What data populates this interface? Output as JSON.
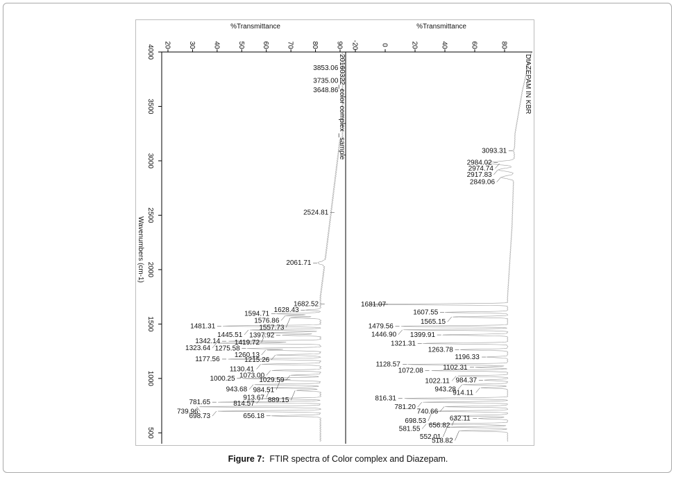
{
  "caption": {
    "label": "Figure 7:",
    "text": "FTIR spectra of Color complex and Diazepam."
  },
  "colors": {
    "spectrum": "#9a9a9a",
    "axis": "#000000",
    "frame": "#a9a9a9"
  },
  "chart_data": [
    {
      "type": "line",
      "title": "20160322_color complex _sample",
      "xlabel": "Wavenumbers (cm-1)",
      "ylabel": "%Transmittance",
      "xlim": [
        4000,
        400
      ],
      "ylim": [
        15,
        95
      ],
      "x_ticks": [
        4000,
        3500,
        3000,
        2500,
        2000,
        1500,
        1000,
        500
      ],
      "y_ticks": [
        20,
        30,
        40,
        50,
        60,
        70,
        80,
        90
      ],
      "peaks": [
        {
          "x": 3853.06,
          "y": 92,
          "label": "3853.06"
        },
        {
          "x": 3735.0,
          "y": 92,
          "label": "3735.00"
        },
        {
          "x": 3648.86,
          "y": 92,
          "label": "3648.86"
        },
        {
          "x": 2524.81,
          "y": 88,
          "label": "2524.81"
        },
        {
          "x": 2061.71,
          "y": 81,
          "label": "2061.71"
        },
        {
          "x": 1682.52,
          "y": 84,
          "label": "1682.52"
        },
        {
          "x": 1628.43,
          "y": 76,
          "label": "1628.43"
        },
        {
          "x": 1594.71,
          "y": 64,
          "label": "1594.71"
        },
        {
          "x": 1576.86,
          "y": 68,
          "label": "1576.86"
        },
        {
          "x": 1557.73,
          "y": 70,
          "label": "1557.73"
        },
        {
          "x": 1481.31,
          "y": 42,
          "label": "1481.31"
        },
        {
          "x": 1445.51,
          "y": 53,
          "label": "1445.51"
        },
        {
          "x": 1419.72,
          "y": 60,
          "label": "1419.72"
        },
        {
          "x": 1397.92,
          "y": 66,
          "label": "1397.92"
        },
        {
          "x": 1342.14,
          "y": 44,
          "label": "1342.14"
        },
        {
          "x": 1323.64,
          "y": 40,
          "label": "1323.64"
        },
        {
          "x": 1275.58,
          "y": 52,
          "label": "1275.58"
        },
        {
          "x": 1260.13,
          "y": 60,
          "label": "1260.13"
        },
        {
          "x": 1215.26,
          "y": 64,
          "label": "1215.26"
        },
        {
          "x": 1177.56,
          "y": 44,
          "label": "1177.56"
        },
        {
          "x": 1130.41,
          "y": 58,
          "label": "1130.41"
        },
        {
          "x": 1073.0,
          "y": 62,
          "label": "1073.00"
        },
        {
          "x": 1029.59,
          "y": 70,
          "label": "1029.59"
        },
        {
          "x": 1000.25,
          "y": 50,
          "label": "1000.25"
        },
        {
          "x": 984.51,
          "y": 66,
          "label": "984.51"
        },
        {
          "x": 943.68,
          "y": 55,
          "label": "943.68"
        },
        {
          "x": 913.67,
          "y": 62,
          "label": "913.67"
        },
        {
          "x": 889.15,
          "y": 72,
          "label": "889.15"
        },
        {
          "x": 814.57,
          "y": 58,
          "label": "814.57"
        },
        {
          "x": 781.65,
          "y": 40,
          "label": "781.65"
        },
        {
          "x": 739.96,
          "y": 32,
          "label": "739.96"
        },
        {
          "x": 698.73,
          "y": 40,
          "label": "698.73"
        },
        {
          "x": 656.18,
          "y": 62,
          "label": "656.18"
        }
      ]
    },
    {
      "type": "line",
      "title": "DIAZEPAM IN KBR",
      "xlabel": "Wavenumbers (cm-1)",
      "ylabel": "%Transmittance",
      "xlim": [
        4000,
        400
      ],
      "ylim": [
        -25,
        100
      ],
      "x_ticks": [
        4000,
        3500,
        3000,
        2500,
        2000,
        1500,
        1000,
        500
      ],
      "y_ticks": [
        -20,
        0,
        20,
        40,
        60,
        80
      ],
      "peaks": [
        {
          "x": 3093.31,
          "y": 86,
          "label": "3093.31"
        },
        {
          "x": 2984.02,
          "y": 76,
          "label": "2984.02"
        },
        {
          "x": 2974.74,
          "y": 77,
          "label": "2974.74"
        },
        {
          "x": 2917.83,
          "y": 76,
          "label": "2917.83"
        },
        {
          "x": 2849.06,
          "y": 78,
          "label": "2849.06"
        },
        {
          "x": 1681.07,
          "y": -10,
          "label": "1681.07"
        },
        {
          "x": 1607.55,
          "y": 40,
          "label": "1607.55"
        },
        {
          "x": 1565.15,
          "y": 45,
          "label": "1565.15"
        },
        {
          "x": 1479.56,
          "y": 10,
          "label": "1479.56"
        },
        {
          "x": 1446.9,
          "y": 12,
          "label": "1446.90"
        },
        {
          "x": 1399.91,
          "y": 38,
          "label": "1399.91"
        },
        {
          "x": 1321.31,
          "y": 25,
          "label": "1321.31"
        },
        {
          "x": 1263.78,
          "y": 50,
          "label": "1263.78"
        },
        {
          "x": 1196.33,
          "y": 68,
          "label": "1196.33"
        },
        {
          "x": 1128.57,
          "y": 15,
          "label": "1128.57"
        },
        {
          "x": 1102.31,
          "y": 60,
          "label": "1102.31"
        },
        {
          "x": 1072.08,
          "y": 30,
          "label": "1072.08"
        },
        {
          "x": 1022.11,
          "y": 48,
          "label": "1022.11"
        },
        {
          "x": 984.37,
          "y": 66,
          "label": "984.37"
        },
        {
          "x": 943.28,
          "y": 52,
          "label": "943.28"
        },
        {
          "x": 914.11,
          "y": 64,
          "label": "914.11"
        },
        {
          "x": 816.31,
          "y": 12,
          "label": "816.31"
        },
        {
          "x": 781.2,
          "y": 25,
          "label": "781.20"
        },
        {
          "x": 740.66,
          "y": 40,
          "label": "740.66"
        },
        {
          "x": 698.53,
          "y": 32,
          "label": "698.53"
        },
        {
          "x": 656.82,
          "y": 48,
          "label": "656.82"
        },
        {
          "x": 632.11,
          "y": 62,
          "label": "632.11"
        },
        {
          "x": 581.55,
          "y": 28,
          "label": "581.55"
        },
        {
          "x": 552.01,
          "y": 42,
          "label": "552.01"
        },
        {
          "x": 518.82,
          "y": 50,
          "label": "518.82"
        }
      ]
    }
  ]
}
